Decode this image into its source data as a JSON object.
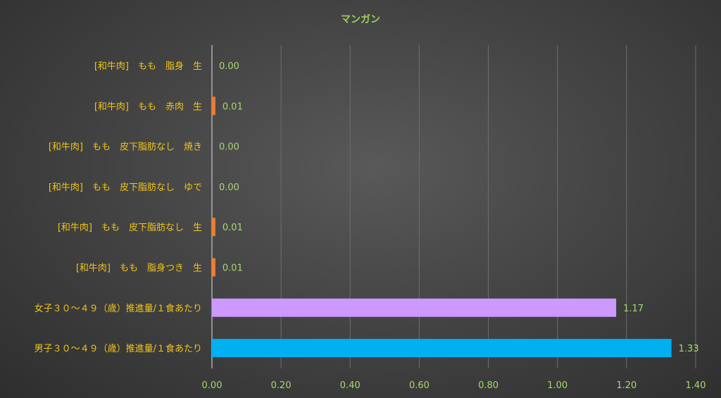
{
  "chart_data": {
    "type": "bar",
    "orientation": "horizontal",
    "title": "マンガン",
    "categories": [
      "[和牛肉]　もも　脂身　生",
      "[和牛肉]　もも　赤肉　生",
      "[和牛肉]　もも　皮下脂肪なし　焼き",
      "[和牛肉]　もも　皮下脂肪なし　ゆで",
      "[和牛肉]　もも　皮下脂肪なし　生",
      "[和牛肉]　もも　脂身つき　生",
      "女子３０～４９（歳）推進量/１食あたり",
      "男子３０～４９（歳）推進量/１食あたり"
    ],
    "values": [
      0.0,
      0.01,
      0.0,
      0.0,
      0.01,
      0.01,
      1.17,
      1.33
    ],
    "value_labels": [
      "0.00",
      "0.01",
      "0.00",
      "0.00",
      "0.01",
      "0.01",
      "1.17",
      "1.33"
    ],
    "bar_colors": [
      "#ed7d31",
      "#ed7d31",
      "#ed7d31",
      "#ed7d31",
      "#ed7d31",
      "#ed7d31",
      "#cc99ff",
      "#00b0f0"
    ],
    "xlim": [
      0,
      1.4
    ],
    "xticks": [
      "0.00",
      "0.20",
      "0.40",
      "0.60",
      "0.80",
      "1.00",
      "1.20",
      "1.40"
    ],
    "xtick_values": [
      0,
      0.2,
      0.4,
      0.6,
      0.8,
      1.0,
      1.2,
      1.4
    ],
    "grid": true,
    "legend": "none",
    "colors": {
      "title": "#9bd25a",
      "category_labels": "#f0c419",
      "tick_labels": "#a8d86e",
      "gridlines": "#6e6e6e",
      "axis": "#c8c8c8"
    }
  }
}
